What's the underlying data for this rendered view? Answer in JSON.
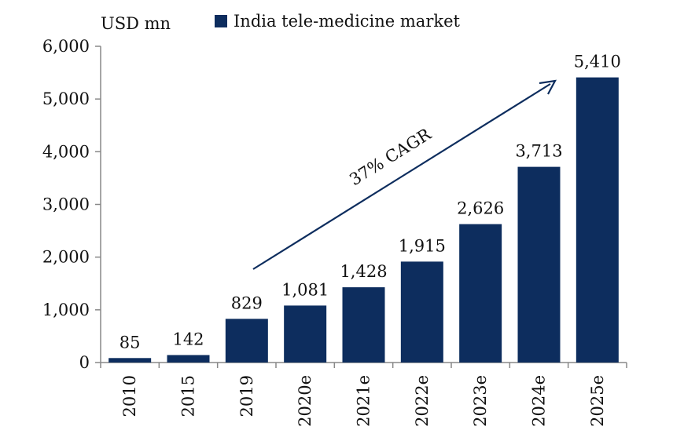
{
  "chart_data": {
    "type": "bar",
    "title": "",
    "unit_label": "USD mn",
    "legend": "India tele-medicine market",
    "categories": [
      "2010",
      "2015",
      "2019",
      "2020e",
      "2021e",
      "2022e",
      "2023e",
      "2024e",
      "2025e"
    ],
    "series": [
      {
        "name": "India tele-medicine market",
        "values": [
          85,
          142,
          829,
          1081,
          1428,
          1915,
          2626,
          3713,
          5410
        ],
        "labels": [
          "85",
          "142",
          "829",
          "1,081",
          "1,428",
          "1,915",
          "2,626",
          "3,713",
          "5,410"
        ]
      }
    ],
    "yticks": [
      {
        "value": 0,
        "label": "0"
      },
      {
        "value": 1000,
        "label": "1,000"
      },
      {
        "value": 2000,
        "label": "2,000"
      },
      {
        "value": 3000,
        "label": "3,000"
      },
      {
        "value": 4000,
        "label": "4,000"
      },
      {
        "value": 5000,
        "label": "5,000"
      },
      {
        "value": 6000,
        "label": "6,000"
      }
    ],
    "ylim": [
      0,
      6000
    ],
    "annotation": "37% CAGR",
    "bar_color": "#0d2d5e",
    "grid": false,
    "legend_position": "top"
  }
}
